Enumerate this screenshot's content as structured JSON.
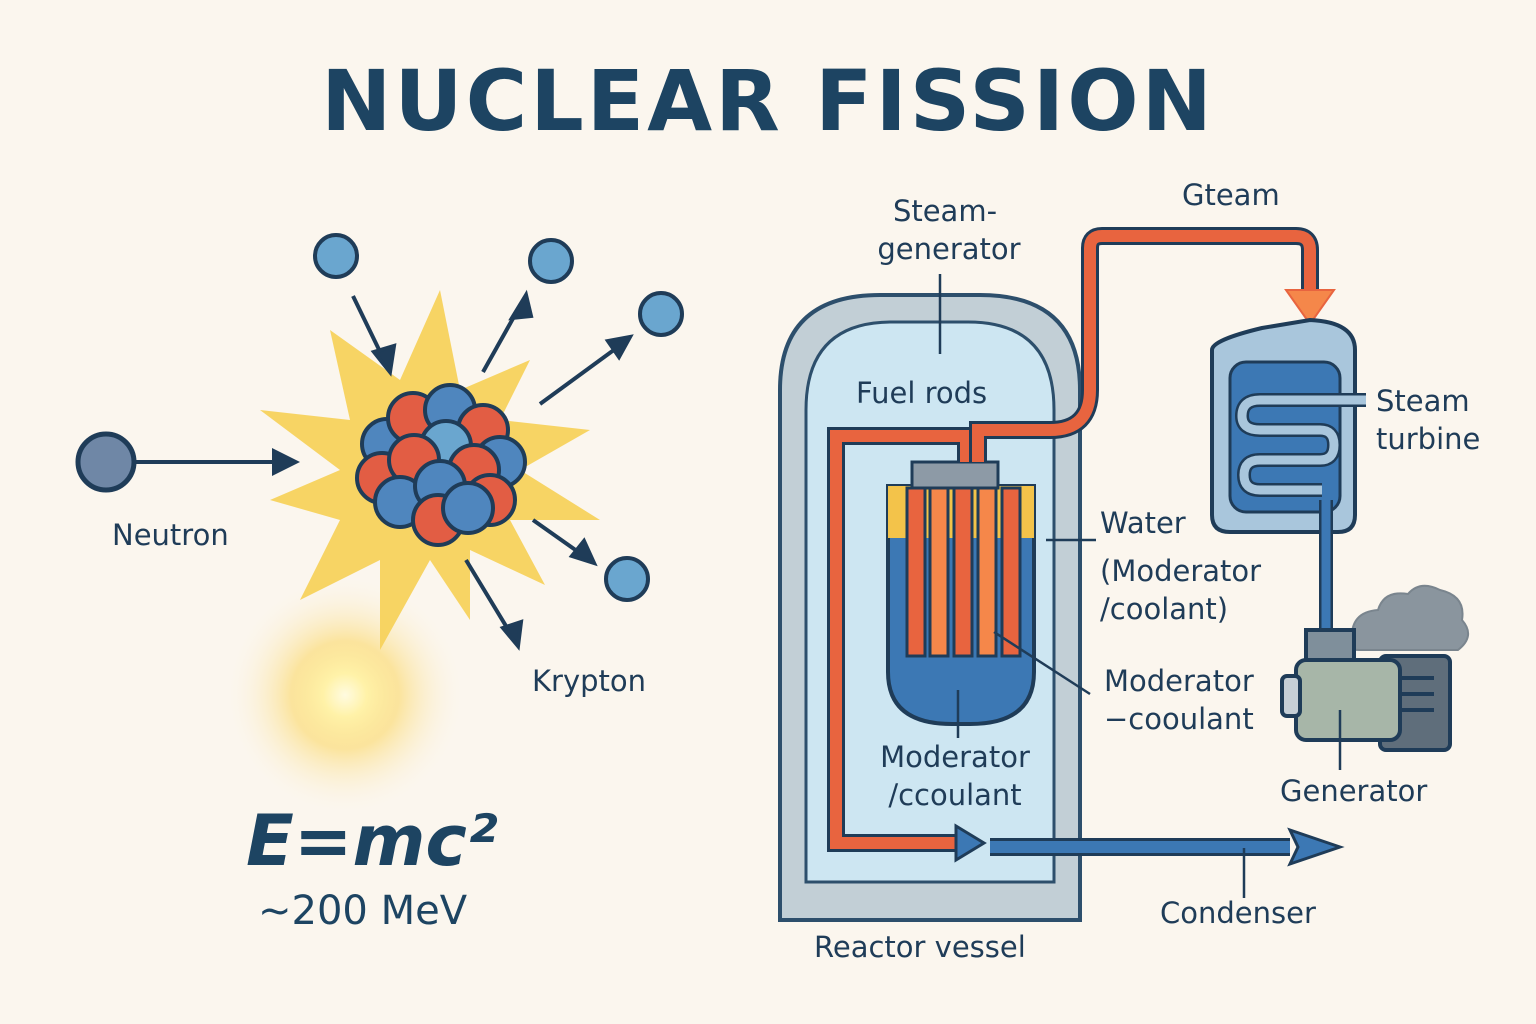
{
  "title": "NUCLEAR FISSION",
  "fission": {
    "neutron_label": "Neutron",
    "krypton_label": "Krypton",
    "formula": "E=mc²",
    "energy": "~200 MeV"
  },
  "reactor": {
    "steam_generator_label_line1": "Steam-",
    "steam_generator_label_line2": "generator",
    "fuel_rods_label": "Fuel rods",
    "water_label_line1": "Water",
    "water_label_line2": "(Moderator",
    "water_label_line3": "/coolant)",
    "moderator_coolant_right_line1": "Moderator",
    "moderator_coolant_right_line2": "−cooulant",
    "moderator_coolant_bottom_line1": "Moderator",
    "moderator_coolant_bottom_line2": "/ccoulant",
    "vessel_label": "Reactor vessel"
  },
  "plant": {
    "steam_label": "Gteam",
    "turbine_label_line1": "Steam",
    "turbine_label_line2": "turbine",
    "generator_label": "Generator",
    "condenser_label": "Condenser"
  },
  "colors": {
    "background": "#fbf6ee",
    "title": "#1d4462",
    "hot_pipe": "#e8643f",
    "cold_pipe": "#3c78b4",
    "burst": "#f7d25c",
    "neutron": "#6aa6cf",
    "proton": "#e25d44"
  }
}
